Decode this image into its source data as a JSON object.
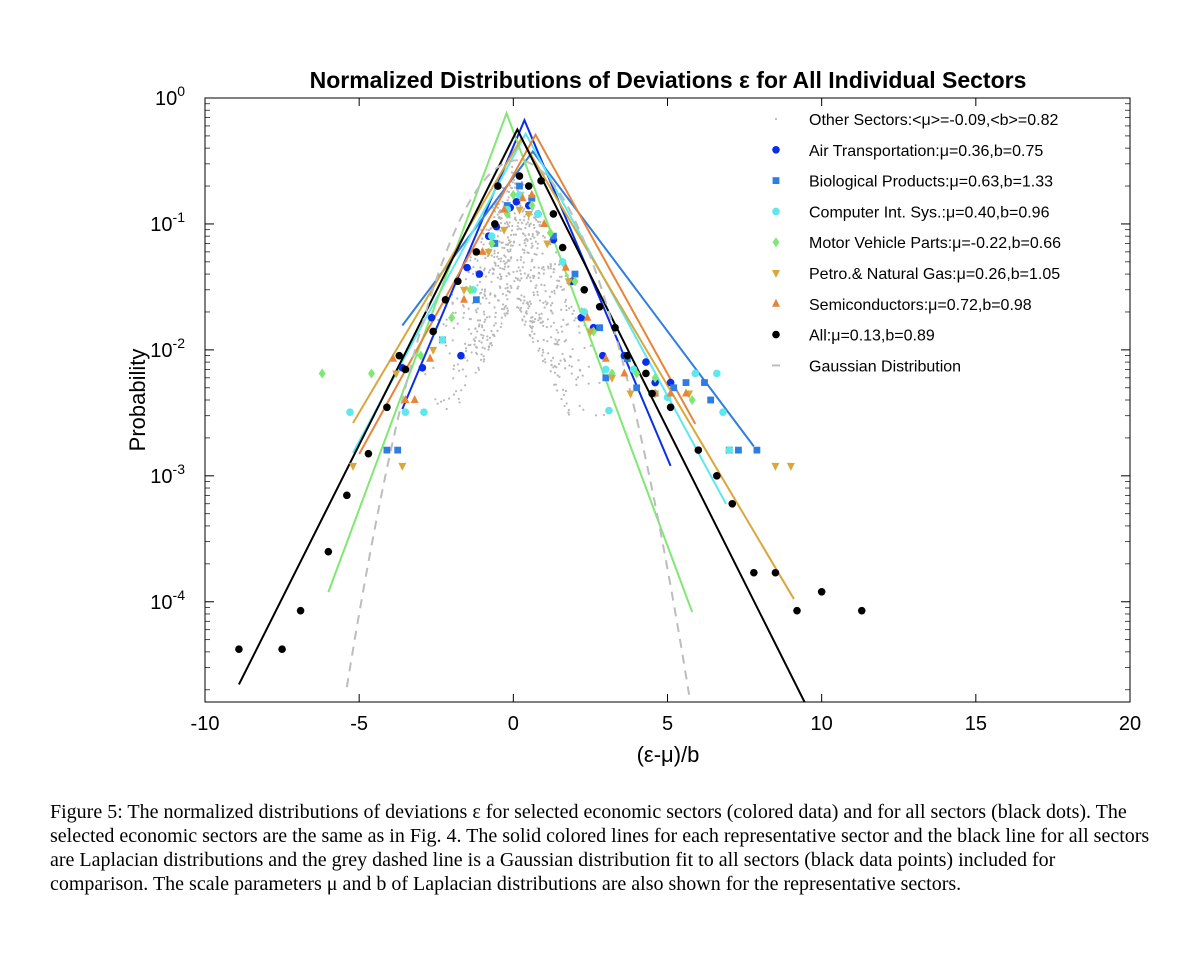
{
  "chart_data": {
    "type": "scatter",
    "title": "Normalized Distributions of Deviations ε for All Individual Sectors",
    "xlabel": "(ε-μ)/b",
    "ylabel": "Probability",
    "xlim": [
      -10,
      20
    ],
    "ylim": [
      1.6e-05,
      1
    ],
    "yscale": "log",
    "grid": false,
    "legend_position": "top-right",
    "x_ticks": [
      {
        "value": -10,
        "label": "-10"
      },
      {
        "value": -5,
        "label": "-5"
      },
      {
        "value": 0,
        "label": "0"
      },
      {
        "value": 5,
        "label": "5"
      },
      {
        "value": 10,
        "label": "10"
      },
      {
        "value": 15,
        "label": "15"
      },
      {
        "value": 20,
        "label": "20"
      }
    ],
    "y_ticks": [
      {
        "value": 0.0001,
        "base": "10",
        "exp": "-4"
      },
      {
        "value": 0.001,
        "base": "10",
        "exp": "-3"
      },
      {
        "value": 0.01,
        "base": "10",
        "exp": "-2"
      },
      {
        "value": 0.1,
        "base": "10",
        "exp": "-1"
      },
      {
        "value": 1,
        "base": "10",
        "exp": "0"
      }
    ],
    "series": [
      {
        "name": "Other Sectors:<μ>=-0.09,<b>=0.82",
        "marker": "dot",
        "color": "#b8b8b8",
        "cloud": {
          "center_x": 0,
          "center_y": 0.15,
          "x_spread": 3.2,
          "y_min": 0.003,
          "y_max": 0.3,
          "count": 700
        }
      },
      {
        "name": "Air Transportation:μ=0.36,b=0.75",
        "marker": "circle",
        "color": "#0a2ee8",
        "line": {
          "mu": 0.36,
          "b": 0.75,
          "x_from": -3.6,
          "x_to": 5.1
        },
        "points": [
          [
            -3.6,
            0.0072
          ],
          [
            -2.95,
            0.0072
          ],
          [
            -2.65,
            0.018
          ],
          [
            -1.7,
            0.009
          ],
          [
            -1.5,
            0.045
          ],
          [
            -1.1,
            0.04
          ],
          [
            -0.8,
            0.08
          ],
          [
            -0.55,
            0.095
          ],
          [
            -0.1,
            0.135
          ],
          [
            0.1,
            0.15
          ],
          [
            0.5,
            0.14
          ],
          [
            0.8,
            0.12
          ],
          [
            1.3,
            0.075
          ],
          [
            1.9,
            0.035
          ],
          [
            2.2,
            0.018
          ],
          [
            2.6,
            0.015
          ],
          [
            2.9,
            0.009
          ],
          [
            3.6,
            0.009
          ],
          [
            4.3,
            0.008
          ],
          [
            4.6,
            0.0055
          ],
          [
            5.1,
            0.0055
          ]
        ]
      },
      {
        "name": "Biological Products:μ=0.63,b=1.33",
        "marker": "square",
        "color": "#2f7de1",
        "line": {
          "mu": 0.63,
          "b": 1.33,
          "x_from": -3.6,
          "x_to": 7.8
        },
        "points": [
          [
            -4.1,
            0.0016
          ],
          [
            -3.75,
            0.0016
          ],
          [
            -2.3,
            0.012
          ],
          [
            -1.2,
            0.025
          ],
          [
            -0.6,
            0.07
          ],
          [
            -0.2,
            0.14
          ],
          [
            0.2,
            0.2
          ],
          [
            0.6,
            0.16
          ],
          [
            1.3,
            0.08
          ],
          [
            2.0,
            0.04
          ],
          [
            2.8,
            0.015
          ],
          [
            3.0,
            0.006
          ],
          [
            3.7,
            0.0085
          ],
          [
            4.0,
            0.005
          ],
          [
            5.2,
            0.005
          ],
          [
            5.6,
            0.0055
          ],
          [
            6.2,
            0.0055
          ],
          [
            6.4,
            0.004
          ],
          [
            7.0,
            0.0016
          ],
          [
            7.3,
            0.0016
          ],
          [
            7.9,
            0.0016
          ]
        ]
      },
      {
        "name": "Computer Int. Sys.:μ=0.40,b=0.96",
        "marker": "circle",
        "color": "#5ee8ee",
        "line": {
          "mu": 0.4,
          "b": 0.96,
          "x_from": -5.2,
          "x_to": 6.9
        },
        "points": [
          [
            -5.3,
            0.0032
          ],
          [
            -3.5,
            0.0032
          ],
          [
            -2.9,
            0.0032
          ],
          [
            -2.3,
            0.012
          ],
          [
            -1.3,
            0.03
          ],
          [
            -0.7,
            0.08
          ],
          [
            -0.2,
            0.13
          ],
          [
            0.2,
            0.17
          ],
          [
            0.8,
            0.12
          ],
          [
            1.6,
            0.05
          ],
          [
            2.3,
            0.02
          ],
          [
            3.0,
            0.007
          ],
          [
            3.1,
            0.0033
          ],
          [
            3.9,
            0.007
          ],
          [
            4.6,
            0.0045
          ],
          [
            5.0,
            0.0042
          ],
          [
            5.9,
            0.0065
          ],
          [
            6.6,
            0.0065
          ],
          [
            6.8,
            0.0032
          ],
          [
            7.0,
            0.0016
          ]
        ]
      },
      {
        "name": "Motor Vehicle Parts:μ=-0.22,b=0.66",
        "marker": "diamond",
        "color": "#7fe872",
        "line": {
          "mu": -0.22,
          "b": 0.66,
          "x_from": -6.0,
          "x_to": 5.8
        },
        "points": [
          [
            -6.2,
            0.0065
          ],
          [
            -4.6,
            0.0065
          ],
          [
            -3.0,
            0.009
          ],
          [
            -2.0,
            0.018
          ],
          [
            -1.4,
            0.03
          ],
          [
            -0.7,
            0.07
          ],
          [
            -0.2,
            0.12
          ],
          [
            0.0,
            0.17
          ],
          [
            0.6,
            0.14
          ],
          [
            1.2,
            0.085
          ],
          [
            2.0,
            0.035
          ],
          [
            2.6,
            0.014
          ],
          [
            3.2,
            0.0065
          ],
          [
            4.0,
            0.0065
          ],
          [
            4.6,
            0.006
          ],
          [
            5.8,
            0.004
          ]
        ]
      },
      {
        "name": "Petro.& Natural Gas:μ=0.26,b=1.05",
        "marker": "tri-down",
        "color": "#d9a73a",
        "line": {
          "mu": 0.26,
          "b": 1.05,
          "x_from": -5.2,
          "x_to": 9.1
        },
        "points": [
          [
            -5.2,
            0.0012
          ],
          [
            -3.6,
            0.0012
          ],
          [
            -3.8,
            0.0065
          ],
          [
            -2.6,
            0.01
          ],
          [
            -1.6,
            0.03
          ],
          [
            -0.8,
            0.06
          ],
          [
            -0.3,
            0.09
          ],
          [
            0.2,
            0.13
          ],
          [
            0.5,
            0.12
          ],
          [
            1.1,
            0.07
          ],
          [
            1.8,
            0.035
          ],
          [
            2.5,
            0.014
          ],
          [
            3.2,
            0.006
          ],
          [
            3.8,
            0.0045
          ],
          [
            4.6,
            0.0045
          ],
          [
            5.7,
            0.0045
          ],
          [
            8.5,
            0.0012
          ],
          [
            9.0,
            0.0012
          ]
        ]
      },
      {
        "name": "Semiconductors:μ=0.72,b=0.98",
        "marker": "tri-up",
        "color": "#e8843a",
        "line": {
          "mu": 0.72,
          "b": 0.98,
          "x_from": -5.0,
          "x_to": 5.9
        },
        "points": [
          [
            -3.9,
            0.0085
          ],
          [
            -3.5,
            0.004
          ],
          [
            -3.2,
            0.004
          ],
          [
            -2.7,
            0.0085
          ],
          [
            -1.6,
            0.025
          ],
          [
            -1.0,
            0.06
          ],
          [
            -0.3,
            0.13
          ],
          [
            0.3,
            0.16
          ],
          [
            0.6,
            0.17
          ],
          [
            1.0,
            0.1
          ],
          [
            1.7,
            0.045
          ],
          [
            2.4,
            0.018
          ],
          [
            3.0,
            0.0085
          ],
          [
            3.6,
            0.0065
          ],
          [
            4.6,
            0.0045
          ],
          [
            5.1,
            0.0045
          ],
          [
            5.6,
            0.0045
          ]
        ]
      },
      {
        "name": "All:μ=0.13,b=0.89",
        "marker": "circle",
        "color": "#000000",
        "line": {
          "mu": 0.13,
          "b": 0.89,
          "x_from": -8.9,
          "x_to": 10.5
        },
        "points": [
          [
            -8.9,
            4.2e-05
          ],
          [
            -7.5,
            4.2e-05
          ],
          [
            -6.9,
            8.5e-05
          ],
          [
            -6.0,
            0.00025
          ],
          [
            -5.4,
            0.0007
          ],
          [
            -4.7,
            0.0015
          ],
          [
            -4.1,
            0.0035
          ],
          [
            -3.7,
            0.009
          ],
          [
            -3.5,
            0.007
          ],
          [
            -2.6,
            0.014
          ],
          [
            -2.2,
            0.025
          ],
          [
            -1.8,
            0.035
          ],
          [
            -1.2,
            0.06
          ],
          [
            -0.6,
            0.1
          ],
          [
            -0.5,
            0.2
          ],
          [
            0.2,
            0.24
          ],
          [
            0.5,
            0.2
          ],
          [
            0.9,
            0.22
          ],
          [
            1.3,
            0.12
          ],
          [
            1.6,
            0.065
          ],
          [
            2.3,
            0.03
          ],
          [
            2.8,
            0.022
          ],
          [
            3.3,
            0.015
          ],
          [
            3.7,
            0.009
          ],
          [
            4.3,
            0.0065
          ],
          [
            4.5,
            0.0045
          ],
          [
            5.1,
            0.0035
          ],
          [
            6.0,
            0.0016
          ],
          [
            6.6,
            0.001
          ],
          [
            7.1,
            0.0006
          ],
          [
            7.8,
            0.00017
          ],
          [
            8.5,
            0.00017
          ],
          [
            9.2,
            8.5e-05
          ],
          [
            10.0,
            0.00012
          ],
          [
            11.3,
            8.5e-05
          ]
        ]
      },
      {
        "name": "Gaussian Distribution",
        "marker": "dash",
        "color": "#bdbdbd",
        "gaussian": {
          "mu": 0.13,
          "sigma": 1.26,
          "amplitude": 0.32,
          "x_from": -5.4,
          "x_to": 5.7
        }
      }
    ]
  },
  "caption": "Figure 5: The normalized distributions of deviations ε for selected economic sectors (colored data) and for all sectors (black dots). The selected economic sectors are the same as in Fig. 4. The solid colored lines for each representative sector and the black line for all sectors are Laplacian distributions and the grey dashed line is a Gaussian distribution fit to all sectors (black data points) included for comparison. The scale parameters μ and b of Laplacian distributions are also shown for the representative sectors."
}
